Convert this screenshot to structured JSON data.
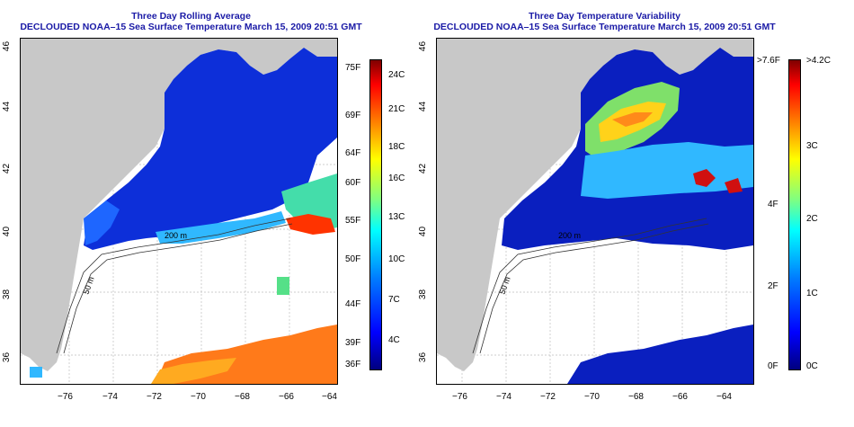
{
  "left": {
    "title_line1": "Three Day Rolling Average",
    "title_line2": "DECLOUDED NOAA–15 Sea Surface Temperature March 15, 2009 20:51 GMT",
    "colorbar_f": [
      "75F",
      "69F",
      "64F",
      "60F",
      "55F",
      "50F",
      "44F",
      "39F",
      "36F"
    ],
    "colorbar_c": [
      "24C",
      "21C",
      "18C",
      "16C",
      "13C",
      "10C",
      "7C",
      "4C"
    ],
    "colors": [
      "#00007f",
      "#0000ff",
      "#0080ff",
      "#00ffff",
      "#80ff80",
      "#ffff00",
      "#ff8000",
      "#ff0000",
      "#7f0000"
    ]
  },
  "right": {
    "title_line1": "Three Day Temperature Variability",
    "title_line2": "DECLOUDED NOAA–15 Sea Surface Temperature March 15, 2009 20:51 GMT",
    "colorbar_f": [
      ">7.6F",
      "4F",
      "2F",
      "0F"
    ],
    "colorbar_c": [
      ">4.2C",
      "3C",
      "2C",
      "1C",
      "0C"
    ],
    "colors": [
      "#00007f",
      "#0000ff",
      "#0080ff",
      "#00ffff",
      "#80ff80",
      "#ffff00",
      "#ff8000",
      "#ff0000",
      "#7f0000"
    ]
  },
  "x_ticks": [
    "−76",
    "−74",
    "−72",
    "−70",
    "−68",
    "−66",
    "−64"
  ],
  "y_ticks": [
    "46",
    "44",
    "42",
    "40",
    "38",
    "36"
  ],
  "contour_labels": [
    "200 m",
    "50 m"
  ],
  "land_color": "#c8c8c8"
}
